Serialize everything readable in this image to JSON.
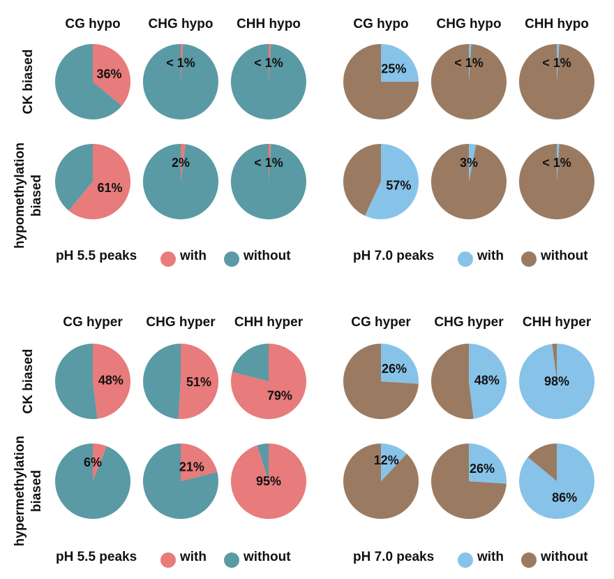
{
  "colors": {
    "ph55_with": "#E87B7B",
    "ph55_without": "#5A9AA4",
    "ph70_with": "#87C3E8",
    "ph70_without": "#9A7B62"
  },
  "legends": [
    {
      "panel": "hypo-ph55",
      "title": "pH 5.5 peaks",
      "with": "with",
      "without": "without"
    },
    {
      "panel": "hypo-ph70",
      "title": "pH 7.0 peaks",
      "with": "with",
      "without": "without"
    },
    {
      "panel": "hyper-ph55",
      "title": "pH 5.5 peaks",
      "with": "with",
      "without": "without"
    },
    {
      "panel": "hyper-ph70",
      "title": "pH 7.0 peaks",
      "with": "with",
      "without": "without"
    }
  ],
  "row_labels": {
    "hypo_ck": [
      "CK biased"
    ],
    "hypo_meth": [
      "hypomethylation",
      "biased"
    ],
    "hyper_ck": [
      "CK biased"
    ],
    "hyper_meth": [
      "hypermethylation",
      "biased"
    ]
  },
  "chart_data": [
    {
      "type": "pie",
      "section": "hypo",
      "ph": "pH 5.5",
      "column_headers": [
        "CG hypo",
        "CHG hypo",
        "CHH hypo"
      ],
      "rows": [
        {
          "row": "CK biased",
          "labels": [
            "36%",
            "< 1%",
            "< 1%"
          ],
          "with_fraction": [
            0.36,
            0.01,
            0.01
          ]
        },
        {
          "row": "hypomethylation biased",
          "labels": [
            "61%",
            "2%",
            "< 1%"
          ],
          "with_fraction": [
            0.61,
            0.02,
            0.01
          ]
        }
      ]
    },
    {
      "type": "pie",
      "section": "hypo",
      "ph": "pH 7.0",
      "column_headers": [
        "CG hypo",
        "CHG hypo",
        "CHH hypo"
      ],
      "rows": [
        {
          "row": "CK biased",
          "labels": [
            "25%",
            "< 1%",
            "< 1%"
          ],
          "with_fraction": [
            0.25,
            0.01,
            0.01
          ]
        },
        {
          "row": "hypomethylation biased",
          "labels": [
            "57%",
            "3%",
            "< 1%"
          ],
          "with_fraction": [
            0.57,
            0.03,
            0.01
          ]
        }
      ]
    },
    {
      "type": "pie",
      "section": "hyper",
      "ph": "pH 5.5",
      "column_headers": [
        "CG hyper",
        "CHG hyper",
        "CHH hyper"
      ],
      "rows": [
        {
          "row": "CK biased",
          "labels": [
            "48%",
            "51%",
            "79%"
          ],
          "with_fraction": [
            0.48,
            0.51,
            0.79
          ]
        },
        {
          "row": "hypermethylation biased",
          "labels": [
            "6%",
            "21%",
            "95%"
          ],
          "with_fraction": [
            0.06,
            0.21,
            0.95
          ]
        }
      ]
    },
    {
      "type": "pie",
      "section": "hyper",
      "ph": "pH 7.0",
      "column_headers": [
        "CG hyper",
        "CHG hyper",
        "CHH hyper"
      ],
      "rows": [
        {
          "row": "CK biased",
          "labels": [
            "26%",
            "48%",
            "98%"
          ],
          "with_fraction": [
            0.26,
            0.48,
            0.98
          ]
        },
        {
          "row": "hypermethylation biased",
          "labels": [
            "12%",
            "26%",
            "86%"
          ],
          "with_fraction": [
            0.12,
            0.26,
            0.86
          ]
        }
      ]
    }
  ]
}
